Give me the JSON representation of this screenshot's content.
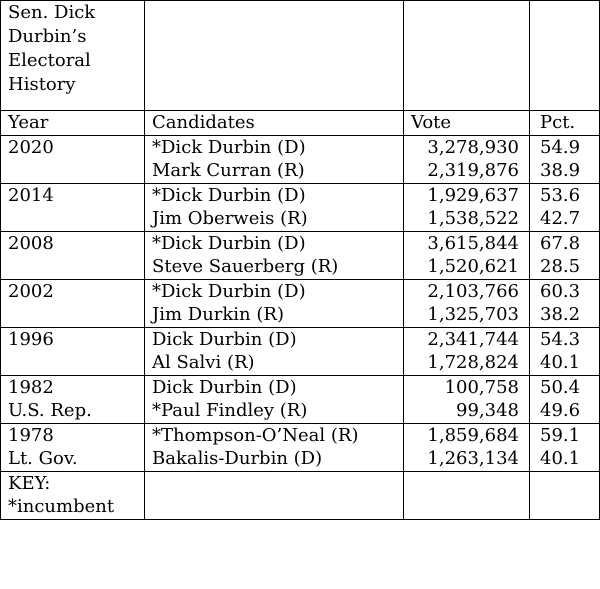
{
  "title_lines": [
    "Sen. Dick",
    "Durbin’s",
    "Electoral",
    "History"
  ],
  "headers": {
    "year": "Year",
    "candidates": "Candidates",
    "vote": "Vote",
    "pct": "Pct."
  },
  "elections": [
    {
      "year": "2020",
      "sub": "",
      "rows": [
        {
          "candidate": "*Dick Durbin (D)",
          "vote": "3,278,930",
          "pct": "54.9"
        },
        {
          "candidate": "Mark Curran (R)",
          "vote": "2,319,876",
          "pct": "38.9"
        }
      ]
    },
    {
      "year": "2014",
      "sub": "",
      "rows": [
        {
          "candidate": "*Dick Durbin (D)",
          "vote": "1,929,637",
          "pct": "53.6"
        },
        {
          "candidate": "Jim Oberweis (R)",
          "vote": "1,538,522",
          "pct": "42.7"
        }
      ]
    },
    {
      "year": "2008",
      "sub": "",
      "rows": [
        {
          "candidate": "*Dick Durbin (D)",
          "vote": "3,615,844",
          "pct": "67.8"
        },
        {
          "candidate": "Steve Sauerberg (R)",
          "vote": "1,520,621",
          "pct": "28.5"
        }
      ]
    },
    {
      "year": "2002",
      "sub": "",
      "rows": [
        {
          "candidate": "*Dick Durbin (D)",
          "vote": "2,103,766",
          "pct": "60.3"
        },
        {
          "candidate": "Jim Durkin (R)",
          "vote": "1,325,703",
          "pct": "38.2"
        }
      ]
    },
    {
      "year": "1996",
      "sub": "",
      "rows": [
        {
          "candidate": "Dick Durbin (D)",
          "vote": "2,341,744",
          "pct": "54.3"
        },
        {
          "candidate": "Al Salvi (R)",
          "vote": "1,728,824",
          "pct": "40.1"
        }
      ]
    },
    {
      "year": "1982",
      "sub": "U.S. Rep.",
      "rows": [
        {
          "candidate": "Dick Durbin (D)",
          "vote": "100,758",
          "pct": "50.4"
        },
        {
          "candidate": "*Paul Findley (R)",
          "vote": "99,348",
          "pct": "49.6"
        }
      ]
    },
    {
      "year": "1978",
      "sub": "Lt. Gov.",
      "rows": [
        {
          "candidate": "*Thompson-O’Neal (R)",
          "vote": "1,859,684",
          "pct": "59.1"
        },
        {
          "candidate": "Bakalis-Durbin (D)",
          "vote": "1,263,134",
          "pct": "40.1"
        }
      ]
    }
  ],
  "key_lines": [
    "KEY:",
    "*incumbent"
  ]
}
